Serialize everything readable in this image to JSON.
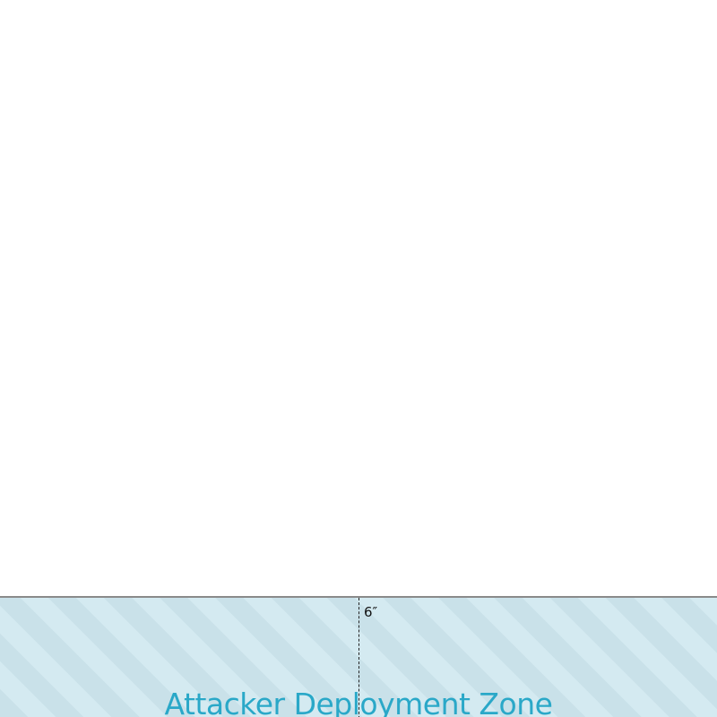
{
  "deployment_zone": {
    "label": "Attacker Deployment Zone",
    "depth_label": "6″",
    "label_color": "#2aa8c8",
    "fill_color": "#d4eaf1",
    "stripe_color": "#c9e1e9",
    "border_color": "#8a8a8a"
  }
}
